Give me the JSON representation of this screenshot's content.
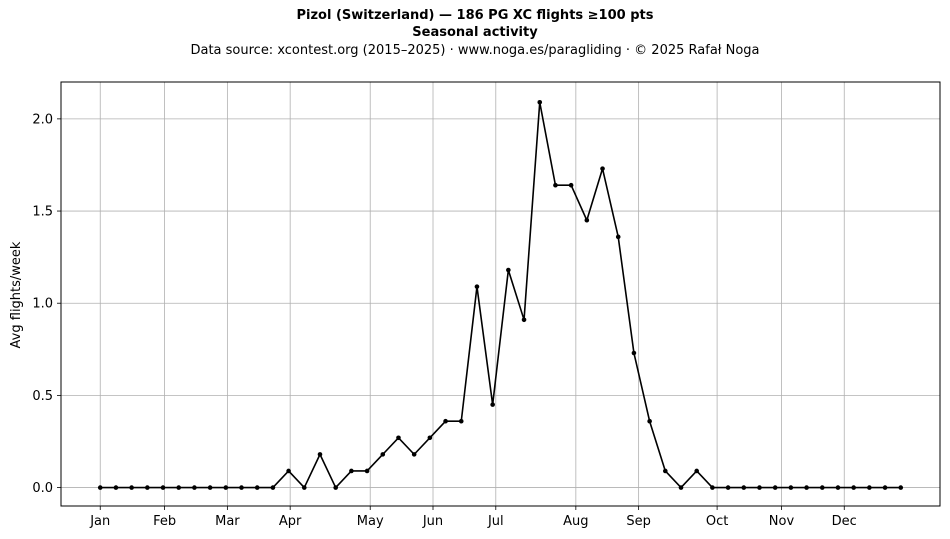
{
  "chart_data": {
    "type": "line",
    "title": "Pizol (Switzerland)  —  186 PG XC flights ≥100 pts",
    "subtitle": "Seasonal activity",
    "source_note": "Data source: xcontest.org (2015–2025)  ·  www.noga.es/paragliding  ·  © 2025 Rafał Noga",
    "xlabel": "",
    "ylabel": "Avg flights/week",
    "ylim": [
      -0.1,
      2.2
    ],
    "xlim": [
      -2.5,
      53.5
    ],
    "grid": true,
    "legend": "none",
    "yticks": [
      {
        "value": 0.0,
        "label": "0.0"
      },
      {
        "value": 0.5,
        "label": "0.5"
      },
      {
        "value": 1.0,
        "label": "1.0"
      },
      {
        "value": 1.5,
        "label": "1.5"
      },
      {
        "value": 2.0,
        "label": "2.0"
      }
    ],
    "xticks": [
      {
        "value": 0,
        "label": "Jan"
      },
      {
        "value": 4.1,
        "label": "Feb"
      },
      {
        "value": 8.1,
        "label": "Mar"
      },
      {
        "value": 12.1,
        "label": "Apr"
      },
      {
        "value": 17.2,
        "label": "May"
      },
      {
        "value": 21.2,
        "label": "Jun"
      },
      {
        "value": 25.2,
        "label": "Jul"
      },
      {
        "value": 30.3,
        "label": "Aug"
      },
      {
        "value": 34.3,
        "label": "Sep"
      },
      {
        "value": 39.3,
        "label": "Oct"
      },
      {
        "value": 43.4,
        "label": "Nov"
      },
      {
        "value": 47.4,
        "label": "Dec"
      }
    ],
    "series": [
      {
        "color": "#000000",
        "x": [
          0,
          1,
          2,
          3,
          4,
          5,
          6,
          7,
          8,
          9,
          10,
          11,
          12,
          13,
          14,
          15,
          16,
          17,
          18,
          19,
          20,
          21,
          22,
          23,
          24,
          25,
          26,
          27,
          28,
          29,
          30,
          31,
          32,
          33,
          34,
          35,
          36,
          37,
          38,
          39,
          40,
          41,
          42,
          43,
          44,
          45,
          46,
          47,
          48,
          49,
          50,
          51
        ],
        "values": [
          0,
          0,
          0,
          0,
          0,
          0,
          0,
          0,
          0,
          0,
          0,
          0,
          0.09,
          0,
          0.18,
          0,
          0.09,
          0.09,
          0.18,
          0.27,
          0.18,
          0.27,
          0.36,
          0.36,
          1.09,
          0.45,
          1.18,
          0.91,
          2.09,
          1.64,
          1.64,
          1.45,
          1.73,
          1.36,
          0.73,
          0.36,
          0.09,
          0,
          0.09,
          0,
          0,
          0,
          0,
          0,
          0,
          0,
          0,
          0,
          0,
          0,
          0,
          0
        ]
      }
    ]
  }
}
